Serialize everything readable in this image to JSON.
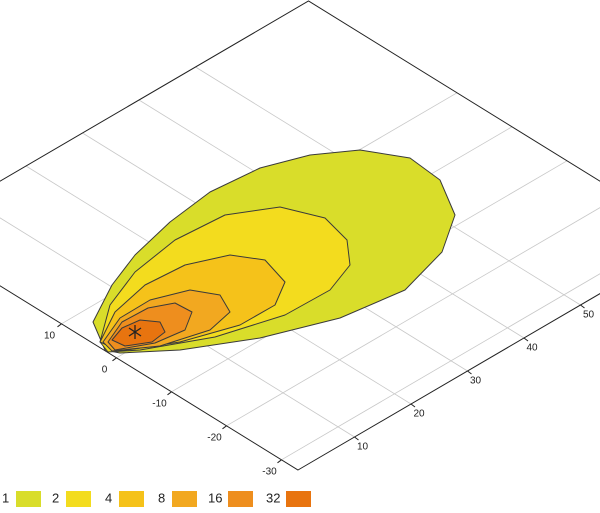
{
  "chart_data": {
    "type": "contour",
    "xlim": [
      0,
      70
    ],
    "ylim": [
      -33,
      37
    ],
    "xticks": [
      10,
      20,
      30,
      40,
      50
    ],
    "yticks": [
      -30,
      -20,
      -10,
      0,
      10
    ],
    "grid": true,
    "levels": [
      1,
      2,
      4,
      8,
      16,
      32
    ],
    "colors": [
      "#d9dd2a",
      "#f3dc1e",
      "#f5c21a",
      "#f2a820",
      "#ee8e1e",
      "#e8740f"
    ]
  }
}
